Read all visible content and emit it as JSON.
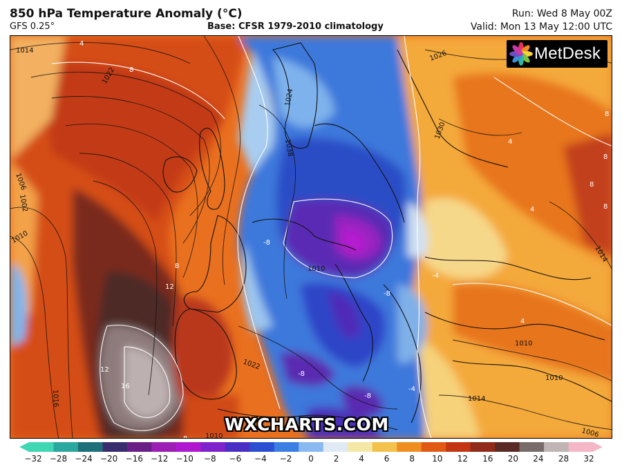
{
  "header": {
    "title": "850 hPa Temperature Anomaly (°C)",
    "model": "GFS 0.25°",
    "base": "Base: CFSR 1979-2010 climatology",
    "run": "Run: Wed 8 May 00Z",
    "valid": "Valid: Mon 13 May 12:00 UTC"
  },
  "brand": {
    "logo_text": "MetDesk",
    "watermark": "WXCHARTS.COM"
  },
  "map": {
    "isobar_labels": [
      "1014",
      "1022",
      "1026",
      "1024",
      "1038",
      "1030",
      "1006",
      "1002",
      "1010",
      "1016",
      "1010",
      "1022",
      "1014",
      "1010",
      "1006",
      "1018",
      "1010",
      "1014",
      "1010"
    ],
    "anomaly_labels": [
      "4",
      "8",
      "8",
      "12",
      "12",
      "16",
      "8",
      "-8",
      "-8",
      "-8",
      "4",
      "8",
      "8",
      "4",
      "4",
      "-4",
      "-4",
      "-8",
      "8",
      "8"
    ]
  },
  "colorbar": {
    "ticks": [
      "−32",
      "−28",
      "−24",
      "−20",
      "−16",
      "−12",
      "−10",
      "−8",
      "−6",
      "−4",
      "−2",
      "0",
      "2",
      "4",
      "6",
      "8",
      "10",
      "12",
      "16",
      "20",
      "24",
      "28",
      "32"
    ],
    "colors": [
      "#40d7b4",
      "#2aa79e",
      "#1e6f7a",
      "#3a2d6e",
      "#6a1f86",
      "#9b1fb3",
      "#b018d0",
      "#7e22cc",
      "#4a2fc4",
      "#2b4fd0",
      "#3c7fe2",
      "#8ab8f0",
      "#dfeaf5",
      "#f5e7a6",
      "#f3c24c",
      "#ef8f22",
      "#e05a16",
      "#c23614",
      "#8f2b18",
      "#5a2a26",
      "#7a6b6b",
      "#c0b4b4",
      "#f4b7c6"
    ]
  }
}
